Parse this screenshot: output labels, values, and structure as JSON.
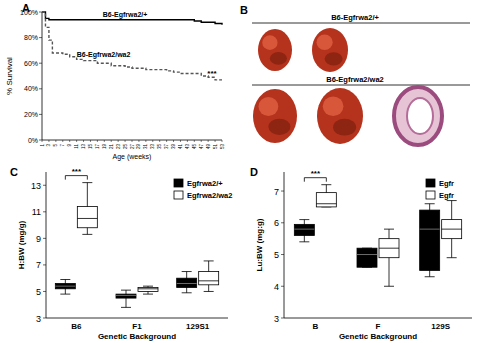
{
  "panels": {
    "B": {
      "label": "B",
      "captions": [
        "B6-Egfrwa2/+",
        "B6-Egfrwa2/wa2"
      ]
    }
  },
  "chart_data": [
    {
      "type": "step",
      "title": "A",
      "y_label": "% Survival",
      "x_label": "Age (weeks)",
      "x": [
        1,
        2,
        3,
        4,
        5,
        7,
        9,
        11,
        13,
        15,
        17,
        19,
        21,
        23,
        25,
        27,
        29,
        31,
        33,
        35,
        37,
        39,
        41,
        43,
        45,
        47,
        49,
        51,
        53
      ],
      "xlim": [
        1,
        53
      ],
      "xticks": [
        1,
        3,
        5,
        7,
        9,
        11,
        13,
        15,
        17,
        19,
        21,
        23,
        25,
        27,
        29,
        31,
        33,
        35,
        37,
        39,
        41,
        43,
        45,
        47,
        49,
        51,
        53
      ],
      "ylim": [
        0,
        100
      ],
      "yticks": [
        {
          "value": 0,
          "label": "0%"
        },
        {
          "value": 20,
          "label": "20%"
        },
        {
          "value": 40,
          "label": "40%"
        },
        {
          "value": 60,
          "label": "60%"
        },
        {
          "value": 80,
          "label": "80%"
        },
        {
          "value": 100,
          "label": "100%"
        }
      ],
      "series": [
        {
          "name": "B6-Egfrwa2/+",
          "color": "#000000",
          "line_style": "solid",
          "values": [
            100,
            95,
            94,
            94,
            94,
            94,
            94,
            94,
            94,
            94,
            94,
            94,
            94,
            94,
            94,
            94,
            94,
            94,
            94,
            94,
            94,
            94,
            94,
            94,
            93,
            92,
            92,
            91,
            90
          ]
        },
        {
          "name": "B6-Egfrwa2/wa2",
          "color": "#555555",
          "line_style": "dashed",
          "values": [
            100,
            88,
            78,
            68,
            68,
            67,
            65,
            63,
            62,
            62,
            60,
            60,
            58,
            58,
            57,
            56,
            56,
            55,
            55,
            55,
            54,
            53,
            52,
            52,
            52,
            50,
            49,
            47,
            47
          ]
        }
      ],
      "annotation": "***"
    },
    {
      "type": "box",
      "title": "C",
      "y_label": "H:BW (mg/g)",
      "x_label": "Genetic Background",
      "categories": [
        "B6",
        "F1",
        "129S1"
      ],
      "ylim": [
        3,
        14
      ],
      "yticks": [
        3,
        5,
        7,
        9,
        11,
        13
      ],
      "series": [
        {
          "name": "Egfrwa2/+",
          "color": "#000000",
          "boxes": [
            {
              "min": 4.8,
              "q1": 5.2,
              "median": 5.4,
              "q3": 5.6,
              "max": 5.9
            },
            {
              "min": 3.8,
              "q1": 4.5,
              "median": 4.7,
              "q3": 4.8,
              "max": 5.1
            },
            {
              "min": 4.9,
              "q1": 5.3,
              "median": 5.6,
              "q3": 6.0,
              "max": 6.5
            }
          ]
        },
        {
          "name": "Egfrwa2/wa2",
          "color": "#ffffff",
          "boxes": [
            {
              "min": 9.3,
              "q1": 9.8,
              "median": 10.5,
              "q3": 11.4,
              "max": 13.2
            },
            {
              "min": 4.8,
              "q1": 5.0,
              "median": 5.2,
              "q3": 5.3,
              "max": 5.4
            },
            {
              "min": 5.0,
              "q1": 5.5,
              "median": 5.8,
              "q3": 6.5,
              "max": 7.3
            }
          ]
        }
      ],
      "annotation": "***"
    },
    {
      "type": "box",
      "title": "D",
      "y_label": "Lu:BW (mg:g)",
      "x_label": "Genetic Background",
      "categories": [
        "B",
        "F",
        "129S"
      ],
      "ylim": [
        3,
        7.6
      ],
      "yticks": [
        3,
        4,
        5,
        6,
        7
      ],
      "series": [
        {
          "name": "Egfr",
          "color": "#000000",
          "boxes": [
            {
              "min": 5.4,
              "q1": 5.6,
              "median": 5.8,
              "q3": 5.95,
              "max": 6.1
            },
            {
              "min": 4.6,
              "q1": 4.6,
              "median": 5.0,
              "q3": 5.2,
              "max": 5.2
            },
            {
              "min": 4.3,
              "q1": 4.5,
              "median": 5.8,
              "q3": 6.4,
              "max": 6.6
            }
          ]
        },
        {
          "name": "Egfr",
          "color": "#ffffff",
          "boxes": [
            {
              "min": 6.5,
              "q1": 6.5,
              "median": 6.6,
              "q3": 6.95,
              "max": 7.2
            },
            {
              "min": 4.0,
              "q1": 4.9,
              "median": 5.2,
              "q3": 5.5,
              "max": 5.8
            },
            {
              "min": 4.9,
              "q1": 5.5,
              "median": 5.8,
              "q3": 6.1,
              "max": 6.7
            }
          ]
        }
      ],
      "annotation": "***"
    }
  ]
}
